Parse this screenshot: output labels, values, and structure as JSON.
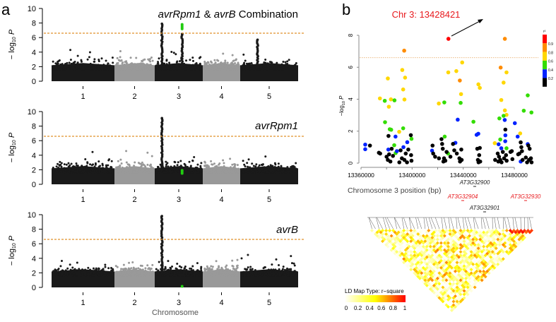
{
  "panel_labels": {
    "a": "a",
    "b": "b"
  },
  "chart_data": [
    {
      "type": "scatter",
      "subtype": "manhattan",
      "title_parts": [
        "avrRpm1",
        " & ",
        "avrB",
        " Combination"
      ],
      "ylabel": "-log10 P",
      "ylim": [
        0,
        10
      ],
      "yticks": [
        0,
        2,
        4,
        6,
        8,
        10
      ],
      "threshold": 6.6,
      "chromosomes": [
        "1",
        "2",
        "3",
        "4",
        "5"
      ],
      "peaks": [
        {
          "chromosome": "3",
          "position_fraction": 0.15,
          "max": 7.9,
          "color": "black"
        },
        {
          "chromosome": "3",
          "position_fraction": 0.57,
          "max": 6.5,
          "color": "black"
        },
        {
          "chromosome": "3",
          "position_fraction": 0.57,
          "values": [
            7.2,
            7.4,
            7.6,
            7.8
          ],
          "color": "green"
        },
        {
          "chromosome": "5",
          "position_fraction": 0.3,
          "max": 5.7,
          "color": "black"
        }
      ]
    },
    {
      "type": "scatter",
      "subtype": "manhattan",
      "title_parts": [
        "avrRpm1"
      ],
      "ylabel": "-log10 P",
      "ylim": [
        0,
        10
      ],
      "yticks": [
        0,
        2,
        4,
        6,
        8,
        10
      ],
      "threshold": 6.6,
      "chromosomes": [
        "1",
        "2",
        "3",
        "4",
        "5"
      ],
      "peaks": [
        {
          "chromosome": "3",
          "position_fraction": 0.15,
          "max": 9.1,
          "color": "black"
        },
        {
          "chromosome": "3",
          "position_fraction": 0.57,
          "values": [
            1.5,
            1.7,
            1.9
          ],
          "color": "green"
        }
      ]
    },
    {
      "type": "scatter",
      "subtype": "manhattan",
      "title_parts": [
        "avrB"
      ],
      "ylabel": "-log10 P",
      "xlabel": "Chromosome",
      "ylim": [
        0,
        10
      ],
      "yticks": [
        0,
        2,
        4,
        6,
        8,
        10
      ],
      "threshold": 6.6,
      "chromosomes": [
        "1",
        "2",
        "3",
        "4",
        "5"
      ],
      "peaks": [
        {
          "chromosome": "3",
          "position_fraction": 0.15,
          "max": 9.8,
          "color": "black"
        },
        {
          "chromosome": "3",
          "position_fraction": 0.57,
          "values": [
            0.15
          ],
          "color": "green"
        }
      ]
    },
    {
      "type": "scatter",
      "subtype": "regional-association",
      "xlabel": "Chromosome 3 position (bp)",
      "ylabel": "-log10 P",
      "xlim": [
        13357000,
        13497000
      ],
      "ylim": [
        0,
        8
      ],
      "xticks": [
        13360000,
        13400000,
        13440000,
        13480000
      ],
      "yticks": [
        0,
        2,
        4,
        6,
        8
      ],
      "threshold": 6.6,
      "annotation": "Chr 3: 13428421",
      "legend": {
        "title": "r²",
        "labels": [
          "0.9",
          "0.8",
          "0.6",
          "0.4",
          "0.2"
        ],
        "colors": [
          "#ff0000",
          "#ff8c00",
          "#ffd700",
          "#33dd00",
          "#0022ff",
          "#000000"
        ]
      },
      "genes": [
        {
          "name": "AT3G32900",
          "color": "#222222"
        },
        {
          "name": "AT3G32904",
          "color": "#e8191d"
        },
        {
          "name": "AT3G32930",
          "color": "#e8191d"
        },
        {
          "name": "AT3G32901",
          "color": "#222222"
        }
      ],
      "points": [
        [
          13428421,
          7.78,
          5
        ],
        [
          13393800,
          7.04,
          4
        ],
        [
          13472600,
          7.78,
          4
        ],
        [
          13437350,
          5.17,
          4
        ],
        [
          13469300,
          5.98,
          4
        ],
        [
          13374800,
          4.05,
          3
        ],
        [
          13381000,
          5.3,
          3
        ],
        [
          13381800,
          3.53,
          3
        ],
        [
          13383400,
          3.99,
          3
        ],
        [
          13392300,
          5.83,
          3
        ],
        [
          13394500,
          5.35,
          3
        ],
        [
          13393000,
          4.61,
          3
        ],
        [
          13394000,
          3.98,
          3
        ],
        [
          13389900,
          1.96,
          3
        ],
        [
          13420900,
          3.73,
          3
        ],
        [
          13428300,
          5.68,
          3
        ],
        [
          13434600,
          5.76,
          3
        ],
        [
          13439200,
          6.3,
          3
        ],
        [
          13438300,
          4.32,
          3
        ],
        [
          13451900,
          4.93,
          3
        ],
        [
          13453000,
          4.71,
          3
        ],
        [
          13469800,
          3.95,
          3
        ],
        [
          13471600,
          5.04,
          3
        ],
        [
          13473900,
          5.68,
          3
        ],
        [
          13472600,
          3.3,
          3
        ],
        [
          13473900,
          3.02,
          3
        ],
        [
          13464700,
          1.25,
          3
        ],
        [
          13484600,
          1.86,
          3
        ],
        [
          13378600,
          3.9,
          2
        ],
        [
          13386200,
          3.93,
          2
        ],
        [
          13378800,
          2.56,
          2
        ],
        [
          13382500,
          2.12,
          2
        ],
        [
          13383600,
          2.09,
          2
        ],
        [
          13393000,
          2.18,
          2
        ],
        [
          13399500,
          1.52,
          2
        ],
        [
          13386000,
          1.12,
          2
        ],
        [
          13387100,
          0.63,
          2
        ],
        [
          13425200,
          3.8,
          2
        ],
        [
          13438000,
          3.77,
          2
        ],
        [
          13425500,
          1.66,
          2
        ],
        [
          13428100,
          0.6,
          2
        ],
        [
          13448000,
          2.59,
          2
        ],
        [
          13468300,
          2.8,
          2
        ],
        [
          13471600,
          2.96,
          2
        ],
        [
          13469000,
          1.48,
          2
        ],
        [
          13473900,
          0.93,
          2
        ],
        [
          13490500,
          4.24,
          2
        ],
        [
          13487400,
          3.28,
          2
        ],
        [
          13493400,
          3.17,
          2
        ],
        [
          13363300,
          1.16,
          1
        ],
        [
          13363300,
          0.87,
          1
        ],
        [
          13387000,
          1.66,
          1
        ],
        [
          13388100,
          0.75,
          1
        ],
        [
          13393200,
          1.0,
          1
        ],
        [
          13396200,
          1.31,
          1
        ],
        [
          13415600,
          0.78,
          1
        ],
        [
          13433900,
          1.27,
          1
        ],
        [
          13435700,
          2.72,
          1
        ],
        [
          13450500,
          1.77,
          1
        ],
        [
          13451800,
          1.84,
          1
        ],
        [
          13467700,
          1.18,
          1
        ],
        [
          13472500,
          2.7,
          1
        ],
        [
          13473000,
          1.74,
          1
        ],
        [
          13472900,
          1.37,
          1
        ],
        [
          13469800,
          0.93,
          1
        ],
        [
          13480400,
          2.5,
          1
        ],
        [
          13482600,
          1.66,
          1
        ],
        [
          13485000,
          0.1,
          1
        ],
        [
          13490500,
          1.19,
          1
        ],
        [
          13381400,
          0.85,
          1
        ],
        [
          13367000,
          1.1,
          0
        ],
        [
          13374000,
          0.65,
          0
        ],
        [
          13375000,
          0.6,
          0
        ],
        [
          13380000,
          0.4,
          0
        ],
        [
          13381000,
          0.2,
          0
        ],
        [
          13381500,
          1.7,
          0
        ],
        [
          13382000,
          0.55,
          0
        ],
        [
          13383000,
          0.1,
          0
        ],
        [
          13384000,
          0.9,
          0
        ],
        [
          13385000,
          0.45,
          0
        ],
        [
          13390000,
          0.05,
          0
        ],
        [
          13391000,
          0.8,
          0
        ],
        [
          13392000,
          0.3,
          0
        ],
        [
          13394000,
          0.2,
          0
        ],
        [
          13395000,
          0.6,
          0
        ],
        [
          13396000,
          0.05,
          0
        ],
        [
          13397000,
          0.85,
          0
        ],
        [
          13399000,
          1.75,
          0
        ],
        [
          13399200,
          0.5,
          0
        ],
        [
          13399500,
          0.15,
          0
        ],
        [
          13416000,
          1.1,
          0
        ],
        [
          13416500,
          0.6,
          0
        ],
        [
          13418000,
          0.4,
          0
        ],
        [
          13421000,
          0.3,
          0
        ],
        [
          13423000,
          1.5,
          0
        ],
        [
          13423500,
          1.2,
          0
        ],
        [
          13424000,
          0.9,
          0
        ],
        [
          13424500,
          0.1,
          0
        ],
        [
          13425000,
          0.3,
          0
        ],
        [
          13426000,
          0.15,
          0
        ],
        [
          13427000,
          0.7,
          0
        ],
        [
          13430000,
          0.4,
          0
        ],
        [
          13432000,
          1.2,
          0
        ],
        [
          13433000,
          0.8,
          0
        ],
        [
          13435000,
          0.6,
          0
        ],
        [
          13437000,
          0.3,
          0
        ],
        [
          13437500,
          0.1,
          0
        ],
        [
          13438500,
          0.85,
          0
        ],
        [
          13438800,
          0.2,
          0
        ],
        [
          13451000,
          0.9,
          0
        ],
        [
          13451500,
          0.2,
          0
        ],
        [
          13452000,
          0.05,
          0
        ],
        [
          13452500,
          0.5,
          0
        ],
        [
          13453000,
          0.95,
          0
        ],
        [
          13453300,
          0.1,
          0
        ],
        [
          13465000,
          0.2,
          0
        ],
        [
          13467000,
          0.6,
          0
        ],
        [
          13467500,
          0.1,
          0
        ],
        [
          13468000,
          0.4,
          0
        ],
        [
          13469000,
          0.2,
          0
        ],
        [
          13470000,
          0.05,
          0
        ],
        [
          13471000,
          0.7,
          0
        ],
        [
          13472000,
          0.3,
          0
        ],
        [
          13473000,
          2.1,
          0
        ],
        [
          13473500,
          0.5,
          0
        ],
        [
          13474000,
          0.15,
          0
        ],
        [
          13477000,
          0.7,
          0
        ],
        [
          13478000,
          0.75,
          0
        ],
        [
          13478500,
          0.25,
          0
        ],
        [
          13483000,
          0.55,
          0
        ],
        [
          13484000,
          0.6,
          0
        ],
        [
          13485000,
          1.3,
          0
        ],
        [
          13485500,
          1.0,
          0
        ],
        [
          13486000,
          0.75,
          0
        ],
        [
          13486500,
          0.2,
          0
        ],
        [
          13489000,
          0.35,
          0
        ],
        [
          13490000,
          0.05,
          0
        ],
        [
          13491000,
          1.1,
          0
        ],
        [
          13491500,
          0.2,
          0
        ],
        [
          13492000,
          0.9,
          0
        ],
        [
          13493000,
          0.3,
          0
        ],
        [
          13493500,
          0.05,
          0
        ]
      ]
    },
    {
      "type": "heatmap",
      "subtype": "ld-map",
      "legend_title": "LD Map Type: r−square",
      "legend_ticks": [
        "0",
        "0.2",
        "0.4",
        "0.6",
        "0.8",
        "1"
      ],
      "color_range": [
        "#ffffff",
        "#ffff00",
        "#ff0000"
      ]
    }
  ]
}
